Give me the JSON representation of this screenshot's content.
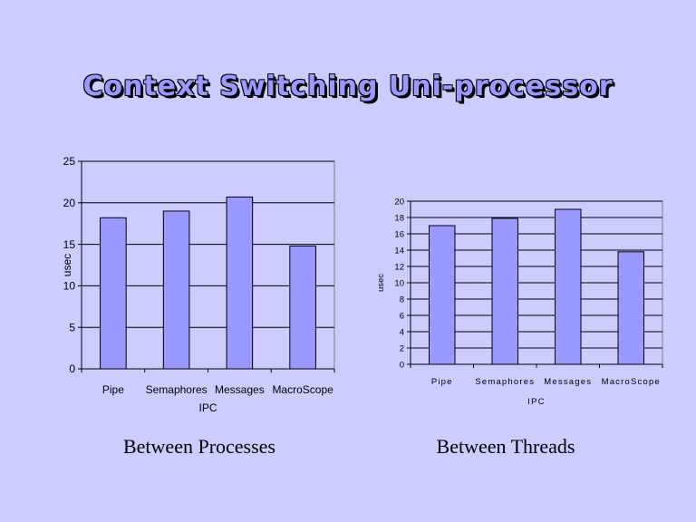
{
  "slide": {
    "title": "Context Switching Uni-processor",
    "caption_left": "Between Processes",
    "caption_right": "Between Threads"
  },
  "colors": {
    "background": "#ccccff",
    "bar_fill": "#9999ff",
    "bar_stroke": "#000000",
    "title_fill": "#9999ff"
  },
  "chart_data": [
    {
      "type": "bar",
      "categories": [
        "Pipe",
        "Semaphores",
        "Messages",
        "MacroScope"
      ],
      "values": [
        18.2,
        19.0,
        20.7,
        14.8
      ],
      "xlabel": "IPC",
      "ylabel": "usec",
      "ylim": [
        0,
        25
      ],
      "yticks": [
        0,
        5,
        10,
        15,
        20,
        25
      ],
      "grid": true
    },
    {
      "type": "bar",
      "categories": [
        "Pipe",
        "Semaphores",
        "Messages",
        "MacroScope"
      ],
      "values": [
        17.0,
        17.9,
        19.0,
        13.8
      ],
      "xlabel": "IPC",
      "ylabel": "usec",
      "ylim": [
        0,
        20
      ],
      "yticks": [
        0,
        2,
        4,
        6,
        8,
        10,
        12,
        14,
        16,
        18,
        20
      ],
      "grid": true
    }
  ]
}
